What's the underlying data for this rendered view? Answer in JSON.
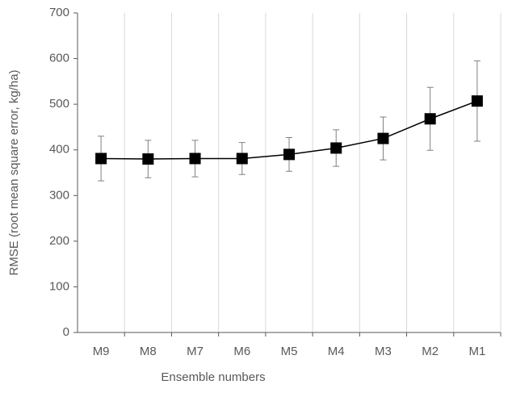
{
  "chart_data": {
    "type": "line",
    "x_label": "Ensemble numbers",
    "y_label": "RMSE  (root mean square error, kg/ha)",
    "categories": [
      "M9",
      "M8",
      "M7",
      "M6",
      "M5",
      "M4",
      "M3",
      "M2",
      "M1"
    ],
    "series": [
      {
        "color": "#000000",
        "values": [
          381,
          380,
          381,
          381,
          390,
          404,
          425,
          468,
          507
        ],
        "errors": [
          49,
          41,
          40,
          35,
          37,
          40,
          47,
          69,
          88
        ]
      }
    ],
    "ylim": [
      0,
      700
    ],
    "yticks": [
      0,
      100,
      200,
      300,
      400,
      500,
      600,
      700
    ],
    "grid": "x"
  }
}
